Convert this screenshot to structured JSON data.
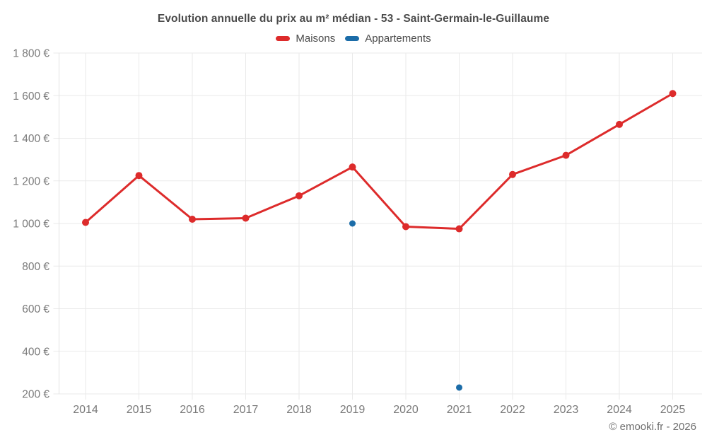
{
  "title": "Evolution annuelle du prix au m² médian - 53 - Saint-Germain-le-Guillaume",
  "footer": "© emooki.fr - 2026",
  "colors": {
    "maisons": "#dd2b2b",
    "appartements": "#1b6ca8",
    "grid": "#eaeaea",
    "axis_border": "#e2e2e2",
    "tick_label": "#7a7a7a"
  },
  "chart_data": {
    "type": "line",
    "title": "Evolution annuelle du prix au m² médian - 53 - Saint-Germain-le-Guillaume",
    "categories": [
      "2014",
      "2015",
      "2016",
      "2017",
      "2018",
      "2019",
      "2020",
      "2021",
      "2022",
      "2023",
      "2024",
      "2025"
    ],
    "series": [
      {
        "name": "Maisons",
        "color": "#dd2b2b",
        "show_line": true,
        "point_radius": 5,
        "values": [
          1005,
          1225,
          1020,
          1025,
          1130,
          1265,
          985,
          975,
          1230,
          1320,
          1465,
          1610
        ]
      },
      {
        "name": "Appartements",
        "color": "#1b6ca8",
        "show_line": false,
        "point_radius": 4.5,
        "values": [
          null,
          null,
          null,
          null,
          null,
          1000,
          null,
          230,
          null,
          null,
          null,
          null
        ]
      }
    ],
    "ylim": [
      200,
      1800
    ],
    "yticks": [
      {
        "value": 200,
        "label": "200 €"
      },
      {
        "value": 400,
        "label": "400 €"
      },
      {
        "value": 600,
        "label": "600 €"
      },
      {
        "value": 800,
        "label": "800 €"
      },
      {
        "value": 1000,
        "label": "1 000 €"
      },
      {
        "value": 1200,
        "label": "1 200 €"
      },
      {
        "value": 1400,
        "label": "1 400 €"
      },
      {
        "value": 1600,
        "label": "1 600 €"
      },
      {
        "value": 1800,
        "label": "1 800 €"
      }
    ],
    "grid": true,
    "legend_position": "top",
    "annotations": []
  }
}
